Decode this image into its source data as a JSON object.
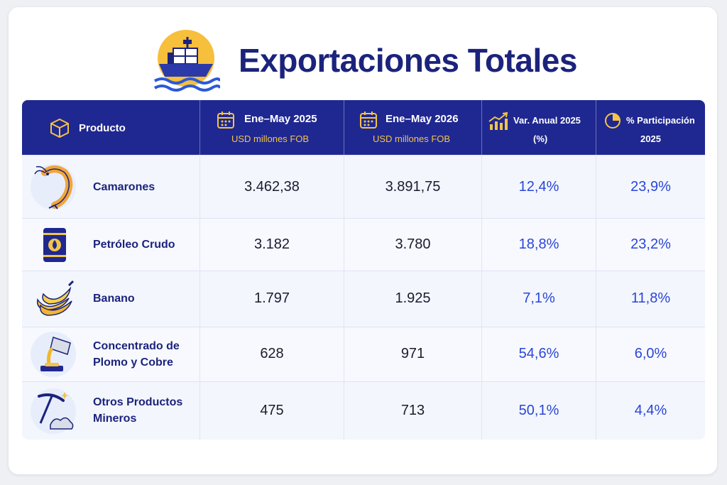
{
  "title": "Exportaciones Totales",
  "colors": {
    "navy": "#1f2890",
    "title": "#1b237c",
    "gold": "#f3c34a",
    "blue_value": "#2a46d6"
  },
  "headers": {
    "producto": "Producto",
    "col1_title": "Ene–May 2025",
    "col1_sub": "USD millones FOB",
    "col2_title": "Ene–May 2026",
    "col2_sub": "USD millones FOB",
    "col3_line1": "Var. Anual 2025",
    "col3_line2": "(%)",
    "col4_line1": "% Participación",
    "col4_line2": "2025"
  },
  "rows": [
    {
      "name_line1": "Camarones",
      "name_line2": "",
      "icon": "shrimp-icon",
      "v2025": "3.462,38",
      "v2026": "3.891,75",
      "var": "12,4%",
      "part": "23,9%"
    },
    {
      "name_line1": "Petróleo Crudo",
      "name_line2": "",
      "icon": "oil-barrel-icon",
      "v2025": "3.182",
      "v2026": "3.780",
      "var": "18,8%",
      "part": "23,2%"
    },
    {
      "name_line1": "Banano",
      "name_line2": "",
      "icon": "banana-icon",
      "v2025": "1.797",
      "v2026": "1.925",
      "var": "7,1%",
      "part": "11,8%"
    },
    {
      "name_line1": "Concentrado de",
      "name_line2": "Plomo y Cobre",
      "icon": "molten-metal-icon",
      "v2025": "628",
      "v2026": "971",
      "var": "54,6%",
      "part": "6,0%"
    },
    {
      "name_line1": "Otros Productos",
      "name_line2": "Mineros",
      "icon": "pickaxe-icon",
      "v2025": "475",
      "v2026": "713",
      "var": "50,1%",
      "part": "4,4%"
    }
  ]
}
